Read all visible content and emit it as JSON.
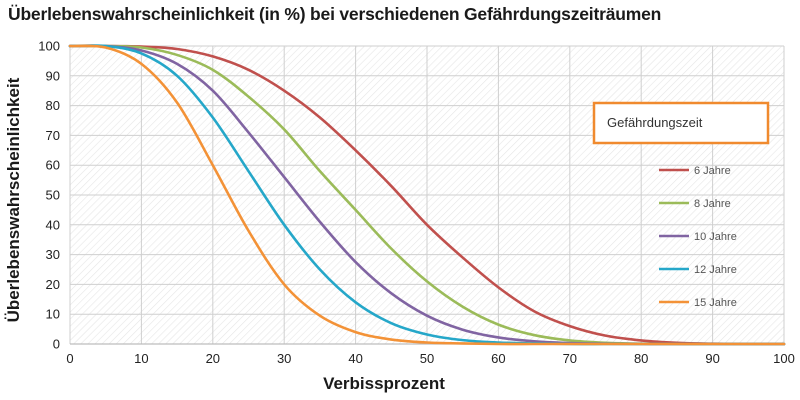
{
  "chart_data": {
    "type": "line",
    "title": "Überlebenswahrscheinlichkeit (in %) bei verschiedenen  Gefährdungszeiträumen",
    "xlabel": "Verbissprozent",
    "ylabel": "Überlebenswahrscheinlichkeit",
    "xlim": [
      0,
      100
    ],
    "ylim": [
      0,
      100
    ],
    "x_ticks": [
      "0",
      "10",
      "20",
      "30",
      "40",
      "50",
      "60",
      "70",
      "80",
      "90",
      "100"
    ],
    "y_ticks": [
      "0",
      "10",
      "20",
      "30",
      "40",
      "50",
      "60",
      "70",
      "80",
      "90",
      "100"
    ],
    "grid": true,
    "legend": {
      "title": "Gefährdungszeit",
      "placement": "right",
      "title_border_color": "#f08a2e"
    },
    "x": [
      0,
      5,
      10,
      15,
      20,
      25,
      30,
      35,
      40,
      45,
      50,
      55,
      60,
      65,
      70,
      75,
      80,
      85,
      90,
      95,
      100
    ],
    "series": [
      {
        "name": "6 Jahre",
        "color": "#c0504d",
        "values": [
          100,
          100,
          99.8,
          99,
          96.5,
          92,
          85,
          76,
          65,
          53,
          40,
          29,
          19,
          11,
          6,
          2.8,
          1.2,
          0.4,
          0.1,
          0,
          0
        ]
      },
      {
        "name": "8 Jahre",
        "color": "#9bbb59",
        "values": [
          100,
          100,
          99.5,
          97,
          92,
          83,
          72,
          58,
          45,
          32,
          21,
          12.5,
          6.5,
          3,
          1.2,
          0.4,
          0.1,
          0,
          0,
          0,
          0
        ]
      },
      {
        "name": "10 Jahre",
        "color": "#8064a2",
        "values": [
          100,
          100,
          98.5,
          94,
          85,
          71,
          56,
          41,
          27.5,
          17,
          9.5,
          4.8,
          2.2,
          0.9,
          0.3,
          0.1,
          0,
          0,
          0,
          0,
          0
        ]
      },
      {
        "name": "12 Jahre",
        "color": "#25a7c9",
        "values": [
          100,
          100,
          97.5,
          90,
          76,
          58,
          40,
          25,
          14,
          7,
          3.2,
          1.3,
          0.5,
          0.2,
          0,
          0,
          0,
          0,
          0,
          0,
          0
        ]
      },
      {
        "name": "15 Jahre",
        "color": "#f39237",
        "values": [
          100,
          99.5,
          94,
          81,
          60,
          38,
          20,
          9.5,
          4,
          1.5,
          0.5,
          0.2,
          0,
          0,
          0,
          0,
          0,
          0,
          0,
          0,
          0
        ]
      }
    ]
  }
}
